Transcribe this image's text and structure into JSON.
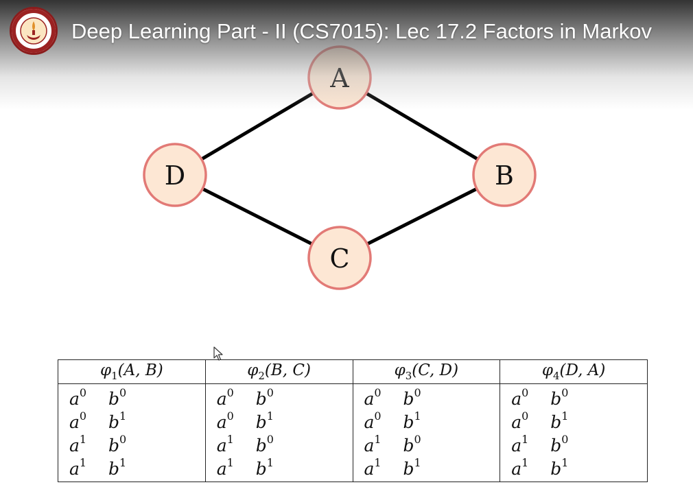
{
  "player": {
    "title": "Deep Learning Part - II (CS7015): Lec 17.2 Factors in Markov",
    "logo_icon": "iit-madras-emblem"
  },
  "graph": {
    "nodes": [
      {
        "label": "A"
      },
      {
        "label": "B"
      },
      {
        "label": "C"
      },
      {
        "label": "D"
      }
    ],
    "edges": [
      [
        "A",
        "B"
      ],
      [
        "B",
        "C"
      ],
      [
        "C",
        "D"
      ],
      [
        "D",
        "A"
      ]
    ],
    "colors": {
      "node_fill": "#fde7d4",
      "node_stroke": "#e27a76",
      "edge": "#000000"
    }
  },
  "factors": [
    {
      "symbol": "φ",
      "index": "1",
      "args": "(A, B)",
      "rows": [
        {
          "a": "a",
          "a_exp": "0",
          "b": "b",
          "b_exp": "0"
        },
        {
          "a": "a",
          "a_exp": "0",
          "b": "b",
          "b_exp": "1"
        },
        {
          "a": "a",
          "a_exp": "1",
          "b": "b",
          "b_exp": "0"
        },
        {
          "a": "a",
          "a_exp": "1",
          "b": "b",
          "b_exp": "1"
        }
      ]
    },
    {
      "symbol": "φ",
      "index": "2",
      "args": "(B, C)",
      "rows": [
        {
          "a": "a",
          "a_exp": "0",
          "b": "b",
          "b_exp": "0"
        },
        {
          "a": "a",
          "a_exp": "0",
          "b": "b",
          "b_exp": "1"
        },
        {
          "a": "a",
          "a_exp": "1",
          "b": "b",
          "b_exp": "0"
        },
        {
          "a": "a",
          "a_exp": "1",
          "b": "b",
          "b_exp": "1"
        }
      ]
    },
    {
      "symbol": "φ",
      "index": "3",
      "args": "(C, D)",
      "rows": [
        {
          "a": "a",
          "a_exp": "0",
          "b": "b",
          "b_exp": "0"
        },
        {
          "a": "a",
          "a_exp": "0",
          "b": "b",
          "b_exp": "1"
        },
        {
          "a": "a",
          "a_exp": "1",
          "b": "b",
          "b_exp": "0"
        },
        {
          "a": "a",
          "a_exp": "1",
          "b": "b",
          "b_exp": "1"
        }
      ]
    },
    {
      "symbol": "φ",
      "index": "4",
      "args": "(D, A)",
      "rows": [
        {
          "a": "a",
          "a_exp": "0",
          "b": "b",
          "b_exp": "0"
        },
        {
          "a": "a",
          "a_exp": "0",
          "b": "b",
          "b_exp": "1"
        },
        {
          "a": "a",
          "a_exp": "1",
          "b": "b",
          "b_exp": "0"
        },
        {
          "a": "a",
          "a_exp": "1",
          "b": "b",
          "b_exp": "1"
        }
      ]
    }
  ]
}
